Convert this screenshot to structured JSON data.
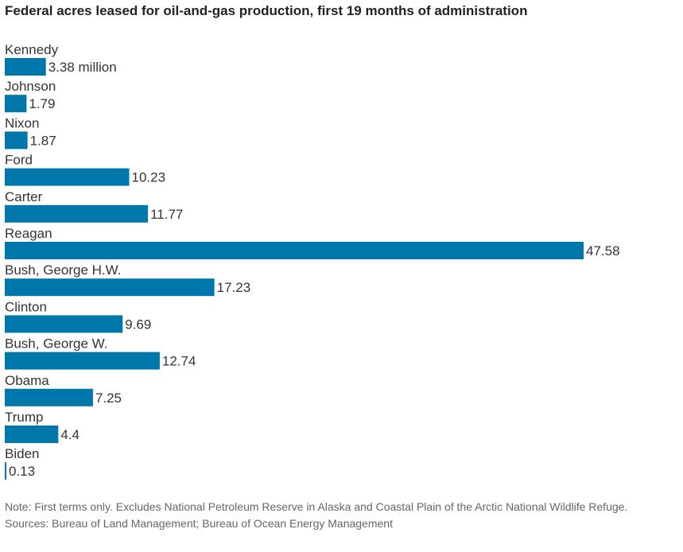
{
  "chart_data": {
    "type": "bar",
    "orientation": "horizontal",
    "title": "Federal acres leased for oil-and-gas production, first 19 months of administration",
    "categories": [
      "Kennedy",
      "Johnson",
      "Nixon",
      "Ford",
      "Carter",
      "Reagan",
      "Bush, George H.W.",
      "Clinton",
      "Bush, George W.",
      "Obama",
      "Trump",
      "Biden"
    ],
    "values": [
      3.38,
      1.79,
      1.87,
      10.23,
      11.77,
      47.58,
      17.23,
      9.69,
      12.74,
      7.25,
      4.4,
      0.13
    ],
    "value_labels": [
      "3.38 million",
      "1.79",
      "1.87",
      "10.23",
      "11.77",
      "47.58",
      "17.23",
      "9.69",
      "12.74",
      "7.25",
      "4.4",
      "0.13"
    ],
    "unit": "million acres",
    "xlim": [
      0,
      47.58
    ],
    "grid": false,
    "bar_color": "#0077aa"
  },
  "note": "Note: First terms only. Excludes National Petroleum Reserve in Alaska and Coastal Plain of the Arctic National Wildlife Refuge.",
  "sources": "Sources: Bureau of Land Management; Bureau of Ocean Energy Management"
}
